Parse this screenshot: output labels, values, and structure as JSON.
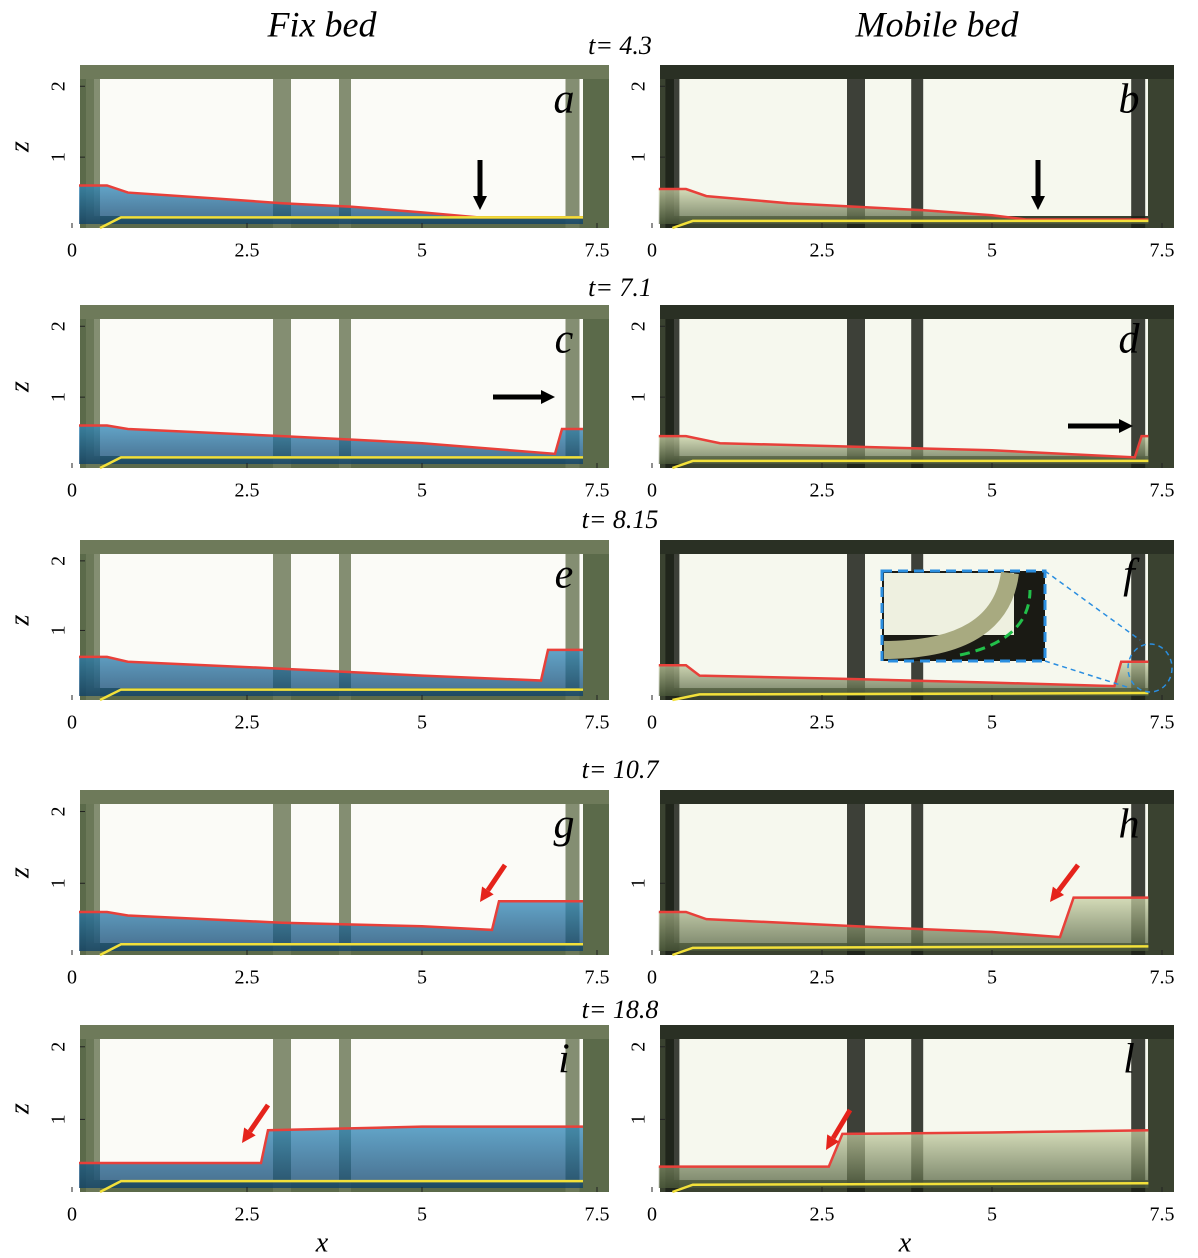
{
  "column_titles": [
    "Fix bed",
    "Mobile bed"
  ],
  "times": [
    "t= 4.3",
    "t= 7.1",
    "t= 8.15",
    "t= 10.7",
    "t= 18.8"
  ],
  "x_label": "x",
  "y_label": "z",
  "chart_data": [
    {
      "type": "line",
      "label": "a",
      "xlim": [
        0,
        7.5
      ],
      "ylim": [
        0,
        2.3
      ],
      "xticks": [
        0,
        2.5,
        5,
        7.5
      ],
      "yticks": [
        1,
        2
      ],
      "series": [
        {
          "color": "#e8403a",
          "x": [
            0.1,
            0.5,
            0.8,
            2,
            3,
            4,
            5,
            5.8,
            7.3
          ],
          "values": [
            0.6,
            0.6,
            0.5,
            0.42,
            0.35,
            0.3,
            0.22,
            0.15,
            0.15
          ]
        },
        {
          "color": "#f2e03a",
          "x": [
            0.4,
            0.7,
            7.3
          ],
          "values": [
            0,
            0.15,
            0.15
          ]
        }
      ]
    },
    {
      "type": "line",
      "label": "b",
      "xlim": [
        0,
        7.5
      ],
      "ylim": [
        0,
        2.3
      ],
      "xticks": [
        0,
        2.5,
        5,
        7.5
      ],
      "yticks": [
        1,
        2
      ],
      "series": [
        {
          "color": "#e8403a",
          "x": [
            0.1,
            0.5,
            0.8,
            2,
            3,
            4,
            5,
            5.5,
            7.3
          ],
          "values": [
            0.55,
            0.55,
            0.45,
            0.35,
            0.3,
            0.25,
            0.18,
            0.12,
            0.12
          ]
        },
        {
          "color": "#f2e03a",
          "x": [
            0.3,
            0.6,
            7.3
          ],
          "values": [
            0,
            0.1,
            0.1
          ]
        }
      ]
    },
    {
      "type": "line",
      "label": "c",
      "xlim": [
        0,
        7.5
      ],
      "ylim": [
        0,
        2.3
      ],
      "xticks": [
        0,
        2.5,
        5,
        7.5
      ],
      "yticks": [
        1,
        2
      ],
      "series": [
        {
          "color": "#e8403a",
          "x": [
            0.1,
            0.5,
            0.8,
            3,
            5,
            6.9,
            7,
            7.3
          ],
          "values": [
            0.6,
            0.6,
            0.55,
            0.45,
            0.35,
            0.2,
            0.55,
            0.55
          ]
        },
        {
          "color": "#f2e03a",
          "x": [
            0.4,
            0.7,
            7.3
          ],
          "values": [
            0,
            0.15,
            0.15
          ]
        }
      ]
    },
    {
      "type": "line",
      "label": "d",
      "xlim": [
        0,
        7.5
      ],
      "ylim": [
        0,
        2.3
      ],
      "xticks": [
        0,
        2.5,
        5,
        7.5
      ],
      "yticks": [
        1,
        2
      ],
      "series": [
        {
          "color": "#e8403a",
          "x": [
            0.1,
            0.5,
            1,
            3,
            5,
            7.1,
            7.2,
            7.3
          ],
          "values": [
            0.45,
            0.45,
            0.35,
            0.3,
            0.25,
            0.15,
            0.45,
            0.45
          ]
        },
        {
          "color": "#f2e03a",
          "x": [
            0.3,
            0.6,
            7.3
          ],
          "values": [
            0,
            0.1,
            0.1
          ]
        }
      ]
    },
    {
      "type": "line",
      "label": "e",
      "xlim": [
        0,
        7.5
      ],
      "ylim": [
        0,
        2.3
      ],
      "xticks": [
        0,
        2.5,
        5,
        7.5
      ],
      "yticks": [
        1,
        2
      ],
      "series": [
        {
          "color": "#e8403a",
          "x": [
            0.1,
            0.5,
            0.8,
            3,
            5,
            6.7,
            6.8,
            7.3
          ],
          "values": [
            0.62,
            0.62,
            0.55,
            0.45,
            0.35,
            0.28,
            0.72,
            0.72
          ]
        },
        {
          "color": "#f2e03a",
          "x": [
            0.4,
            0.7,
            7.3
          ],
          "values": [
            0,
            0.15,
            0.15
          ]
        }
      ]
    },
    {
      "type": "line",
      "label": "f",
      "xlim": [
        0,
        7.5
      ],
      "ylim": [
        0,
        2.3
      ],
      "xticks": [
        0,
        2.5,
        5,
        7.5
      ],
      "series": [
        {
          "color": "#e8403a",
          "x": [
            0.1,
            0.5,
            0.7,
            3,
            5,
            6.8,
            6.9,
            7.3
          ],
          "values": [
            0.5,
            0.5,
            0.35,
            0.3,
            0.25,
            0.2,
            0.55,
            0.55
          ]
        },
        {
          "color": "#f2e03a",
          "x": [
            0.3,
            0.7,
            7.3
          ],
          "values": [
            0,
            0.08,
            0.1
          ]
        }
      ]
    },
    {
      "type": "line",
      "label": "g",
      "xlim": [
        0,
        7.5
      ],
      "ylim": [
        0,
        2.3
      ],
      "xticks": [
        0,
        2.5,
        5,
        7.5
      ],
      "yticks": [
        1,
        2
      ],
      "series": [
        {
          "color": "#e8403a",
          "x": [
            0.1,
            0.5,
            0.8,
            3,
            5,
            6,
            6.1,
            7.3
          ],
          "values": [
            0.6,
            0.6,
            0.55,
            0.45,
            0.4,
            0.35,
            0.75,
            0.75
          ]
        },
        {
          "color": "#f2e03a",
          "x": [
            0.4,
            0.7,
            7.3
          ],
          "values": [
            0,
            0.15,
            0.15
          ]
        }
      ]
    },
    {
      "type": "line",
      "label": "h",
      "xlim": [
        0,
        7.5
      ],
      "ylim": [
        0,
        2.3
      ],
      "xticks": [
        0,
        2.5,
        5,
        7.5
      ],
      "yticks": [
        1
      ],
      "series": [
        {
          "color": "#e8403a",
          "x": [
            0.1,
            0.5,
            0.8,
            3,
            5,
            6,
            6.2,
            7.3
          ],
          "values": [
            0.6,
            0.6,
            0.5,
            0.4,
            0.32,
            0.25,
            0.8,
            0.8
          ]
        },
        {
          "color": "#f2e03a",
          "x": [
            0.3,
            0.6,
            7.3
          ],
          "values": [
            0,
            0.1,
            0.12
          ]
        }
      ]
    },
    {
      "type": "line",
      "label": "i",
      "xlim": [
        0,
        7.5
      ],
      "ylim": [
        0,
        2.3
      ],
      "xticks": [
        0,
        2.5,
        5,
        7.5
      ],
      "yticks": [
        1,
        2
      ],
      "series": [
        {
          "color": "#e8403a",
          "x": [
            0.1,
            2.7,
            2.8,
            5,
            7.3
          ],
          "values": [
            0.4,
            0.4,
            0.85,
            0.9,
            0.9
          ]
        },
        {
          "color": "#f2e03a",
          "x": [
            0.4,
            0.7,
            7.3
          ],
          "values": [
            0,
            0.15,
            0.15
          ]
        }
      ]
    },
    {
      "type": "line",
      "label": "l",
      "xlim": [
        0,
        7.5
      ],
      "ylim": [
        0,
        2.3
      ],
      "xticks": [
        0,
        2.5,
        5,
        7.5
      ],
      "yticks": [
        1,
        2
      ],
      "series": [
        {
          "color": "#e8403a",
          "x": [
            0.1,
            2.6,
            2.8,
            5,
            7.3
          ],
          "values": [
            0.35,
            0.35,
            0.8,
            0.82,
            0.85
          ]
        },
        {
          "color": "#f2e03a",
          "x": [
            0.3,
            0.6,
            7.3
          ],
          "values": [
            0,
            0.1,
            0.12
          ]
        }
      ]
    }
  ]
}
